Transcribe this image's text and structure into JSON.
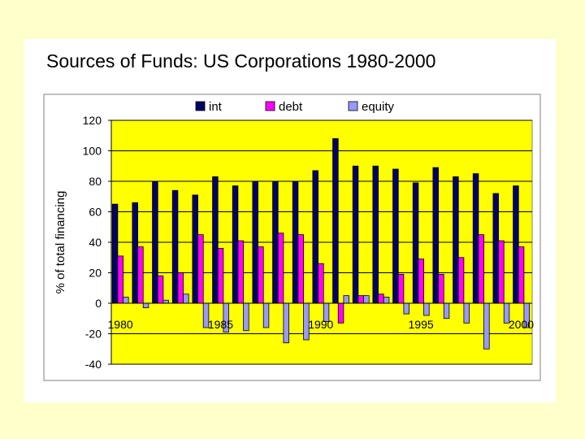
{
  "chart_data": {
    "type": "bar",
    "title": "Sources of Funds: US Corporations 1980-2000",
    "ylabel": "% of total financing",
    "xlabel": "",
    "ylim": [
      -40,
      120
    ],
    "yticks": [
      120,
      100,
      80,
      60,
      40,
      20,
      0,
      -20,
      -40
    ],
    "xtick_labels": [
      {
        "year": 1980,
        "label": "1980"
      },
      {
        "year": 1985,
        "label": "1985"
      },
      {
        "year": 1990,
        "label": "1990"
      },
      {
        "year": 1995,
        "label": "1995"
      },
      {
        "year": 2000,
        "label": "2000"
      }
    ],
    "categories": [
      1980,
      1981,
      1982,
      1983,
      1984,
      1985,
      1986,
      1987,
      1988,
      1989,
      1990,
      1991,
      1992,
      1993,
      1994,
      1995,
      1996,
      1997,
      1998,
      1999,
      2000
    ],
    "series": [
      {
        "name": "int",
        "color": "#000066",
        "values": [
          65,
          66,
          80,
          74,
          71,
          83,
          77,
          80,
          80,
          80,
          87,
          108,
          90,
          90,
          88,
          79,
          89,
          83,
          85,
          72,
          77
        ]
      },
      {
        "name": "debt",
        "color": "#ff00ff",
        "values": [
          31,
          37,
          18,
          20,
          45,
          36,
          41,
          37,
          46,
          45,
          26,
          -13,
          5,
          6,
          19,
          29,
          19,
          30,
          45,
          41,
          37
        ]
      },
      {
        "name": "equity",
        "color": "#9999ff",
        "values": [
          4,
          -3,
          2,
          6,
          -16,
          -19,
          -18,
          -16,
          -26,
          -24,
          -12,
          5,
          5,
          4,
          -7,
          -8,
          -10,
          -13,
          -30,
          -13,
          -16
        ]
      }
    ],
    "legend_position": "top-center",
    "plot_background": "#ffff00",
    "grid": true
  }
}
